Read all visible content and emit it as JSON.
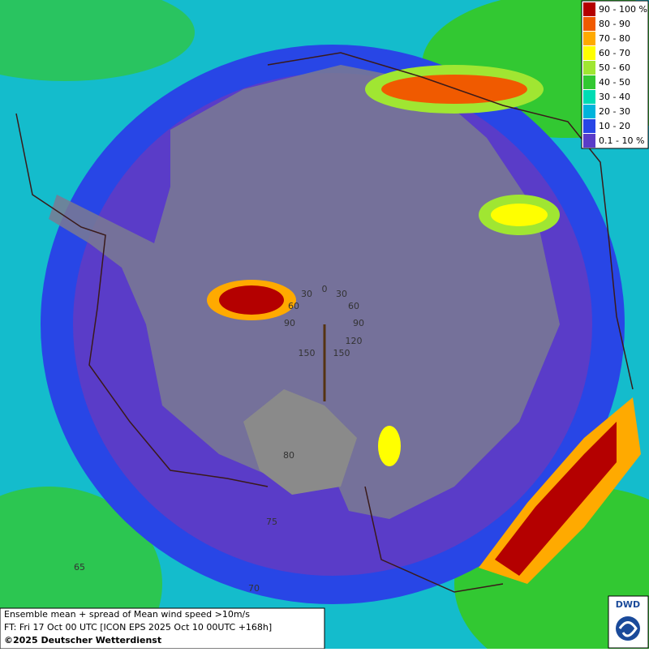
{
  "legend": {
    "items": [
      {
        "label": "90 - 100 %",
        "color": "#b40000"
      },
      {
        "label": "80 - 90",
        "color": "#f05a00"
      },
      {
        "label": "70 - 80",
        "color": "#ffaa00"
      },
      {
        "label": "60 - 70",
        "color": "#ffff00"
      },
      {
        "label": "50 - 60",
        "color": "#a0e632"
      },
      {
        "label": "40 - 50",
        "color": "#32c832"
      },
      {
        "label": "30 - 40",
        "color": "#00dcb4"
      },
      {
        "label": "20 - 30",
        "color": "#00b4dc"
      },
      {
        "label": "10 - 20",
        "color": "#2846e6"
      },
      {
        "label": "0.1 - 10 %",
        "color": "#5a3cc8"
      }
    ]
  },
  "graticule_labels": [
    "0",
    "30",
    "30",
    "60",
    "60",
    "90",
    "90",
    "120",
    "150",
    "150",
    "80",
    "75",
    "70",
    "65"
  ],
  "footer": {
    "line1": "Ensemble mean + spread of Mean wind speed >10m/s",
    "line2": "FT: Fri 17 Oct 00 UTC [ICON EPS 2025 Oct 10 00UTC +168h]",
    "copyright": "©2025 Deutscher Wetterdienst"
  },
  "logo": "DWD"
}
